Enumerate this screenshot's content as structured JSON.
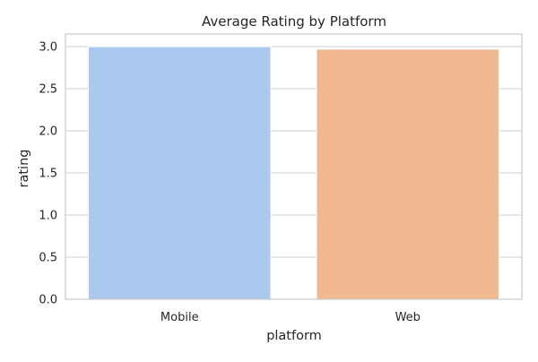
{
  "chart_data": {
    "type": "bar",
    "title": "Average Rating by Platform",
    "xlabel": "platform",
    "ylabel": "rating",
    "categories": [
      "Mobile",
      "Web"
    ],
    "values": [
      3.0,
      2.97
    ],
    "ylim": [
      0,
      3.0
    ],
    "yticks": [
      "0.0",
      "0.5",
      "1.0",
      "1.5",
      "2.0",
      "2.5",
      "3.0"
    ],
    "ytick_values": [
      0,
      0.5,
      1.0,
      1.5,
      2.0,
      2.5,
      3.0
    ],
    "grid": "horizontal",
    "legend": "none",
    "colors": [
      "#abc9ee",
      "#f1b991"
    ]
  }
}
